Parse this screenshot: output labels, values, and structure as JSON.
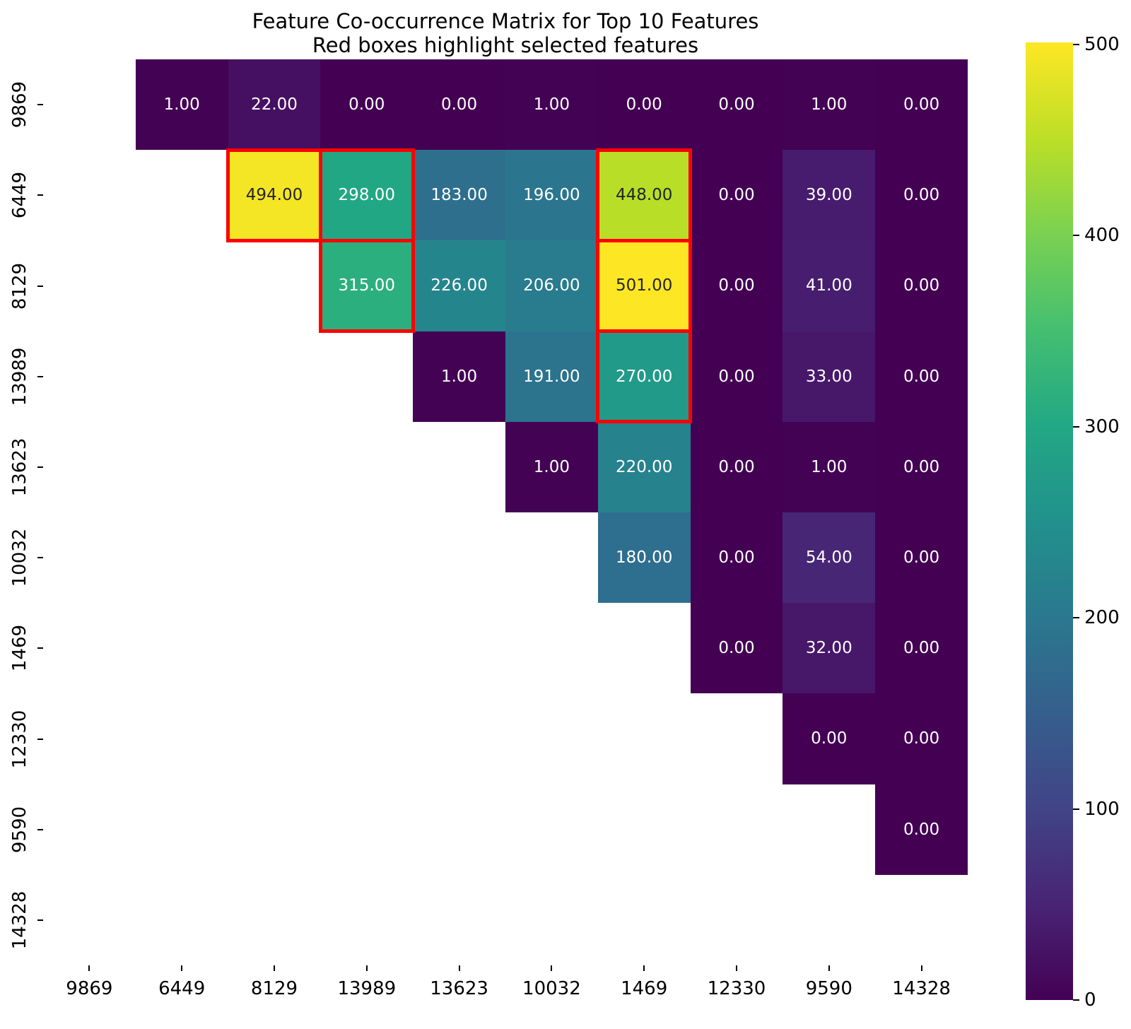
{
  "title": {
    "line1": "Feature Co-occurrence Matrix for Top 10 Features",
    "line2": "Red boxes highlight selected features"
  },
  "chart_data": {
    "type": "heatmap",
    "title_line1": "Feature Co-occurrence Matrix for Top 10 Features",
    "title_line2": "Red boxes highlight selected features",
    "x_labels": [
      "9869",
      "6449",
      "8129",
      "13989",
      "13623",
      "10032",
      "1469",
      "12330",
      "9590",
      "14328"
    ],
    "y_labels": [
      "9869",
      "6449",
      "8129",
      "13989",
      "13623",
      "10032",
      "1469",
      "12330",
      "9590",
      "14328"
    ],
    "matrix": [
      [
        null,
        1,
        22,
        0,
        0,
        1,
        0,
        0,
        1,
        0
      ],
      [
        null,
        null,
        494,
        298,
        183,
        196,
        448,
        0,
        39,
        0
      ],
      [
        null,
        null,
        null,
        315,
        226,
        206,
        501,
        0,
        41,
        0
      ],
      [
        null,
        null,
        null,
        null,
        1,
        191,
        270,
        0,
        33,
        0
      ],
      [
        null,
        null,
        null,
        null,
        null,
        1,
        220,
        0,
        1,
        0
      ],
      [
        null,
        null,
        null,
        null,
        null,
        null,
        180,
        0,
        54,
        0
      ],
      [
        null,
        null,
        null,
        null,
        null,
        null,
        null,
        0,
        32,
        0
      ],
      [
        null,
        null,
        null,
        null,
        null,
        null,
        null,
        null,
        0,
        0
      ],
      [
        null,
        null,
        null,
        null,
        null,
        null,
        null,
        null,
        null,
        0
      ],
      [
        null,
        null,
        null,
        null,
        null,
        null,
        null,
        null,
        null,
        null
      ]
    ],
    "mask": "lower-triangle-and-diagonal",
    "annotation_format": "%.2f",
    "vmin": 0,
    "vmax": 501,
    "colormap": "viridis",
    "viridis_stops": [
      "#440154",
      "#482475",
      "#414487",
      "#355f8d",
      "#2a788e",
      "#21918c",
      "#22a884",
      "#44bf70",
      "#7ad151",
      "#bddf26",
      "#fde725"
    ],
    "annotation_text_light": "#ffffff",
    "annotation_text_dark": "#262626",
    "luminance_threshold": 0.408,
    "colorbar_ticks": [
      0,
      100,
      200,
      300,
      400,
      500
    ],
    "selected_features": [
      "6449",
      "8129",
      "13989",
      "1469"
    ],
    "selected_cells": [
      [
        1,
        2
      ],
      [
        1,
        3
      ],
      [
        2,
        3
      ],
      [
        1,
        6
      ],
      [
        2,
        6
      ],
      [
        3,
        6
      ]
    ],
    "selection_color": "#ff0000",
    "background": "#ffffff",
    "legend_position": "right-colorbar",
    "grid": false
  }
}
